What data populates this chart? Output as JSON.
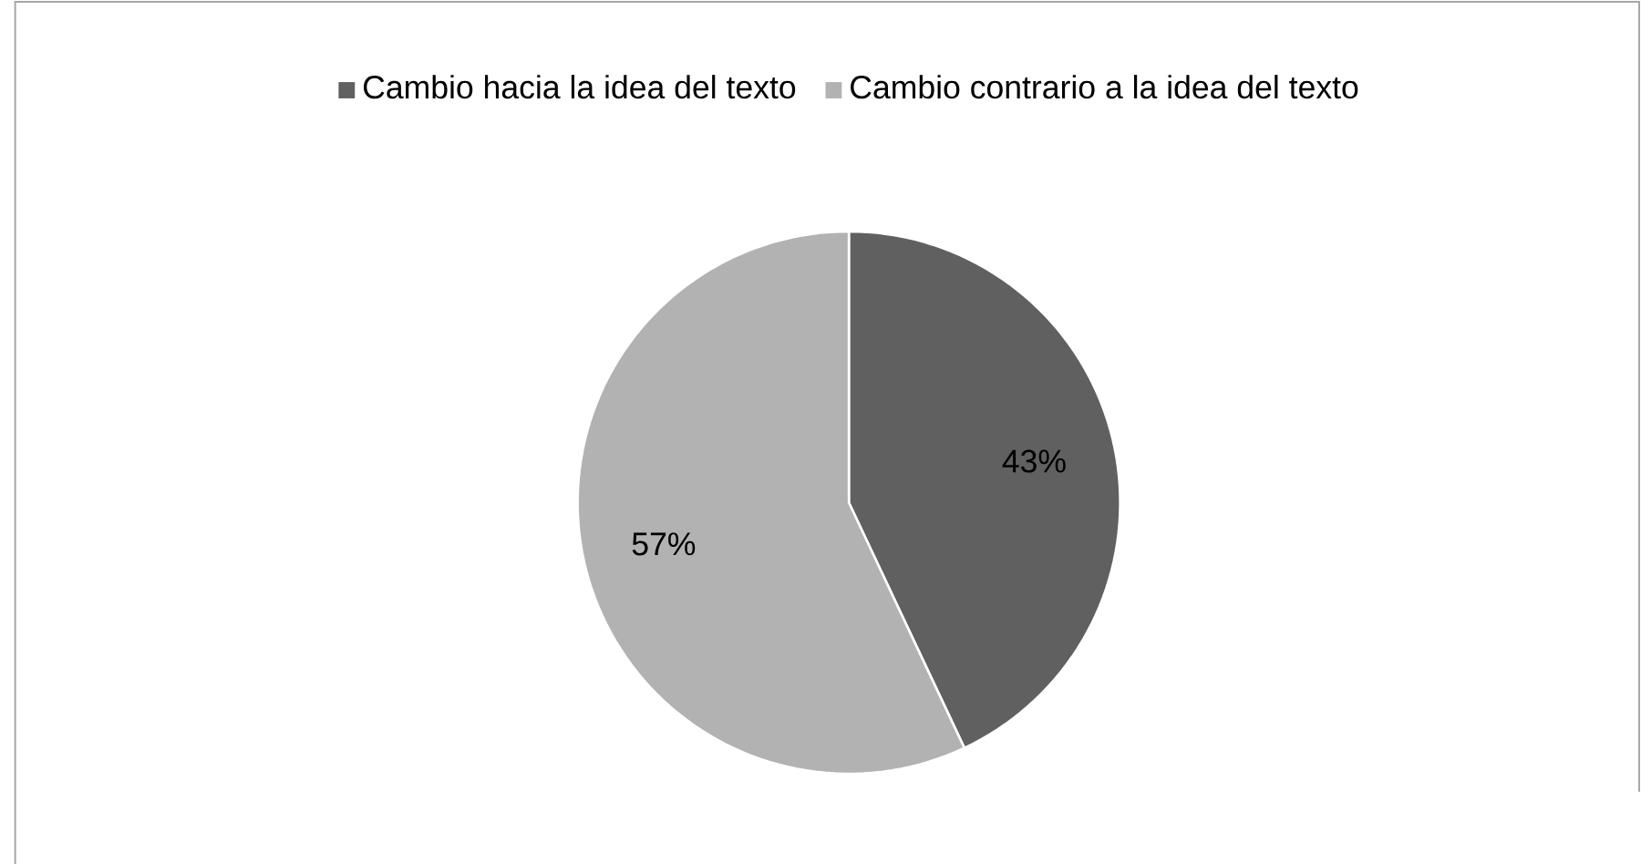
{
  "chart_data": {
    "type": "pie",
    "categories": [
      "Cambio hacia la idea del texto",
      "Cambio contrario a la idea del texto"
    ],
    "values": [
      43,
      57
    ],
    "colors": [
      "#606060",
      "#b2b2b2"
    ],
    "value_labels": [
      "43%",
      "57%"
    ],
    "legend": "top"
  }
}
